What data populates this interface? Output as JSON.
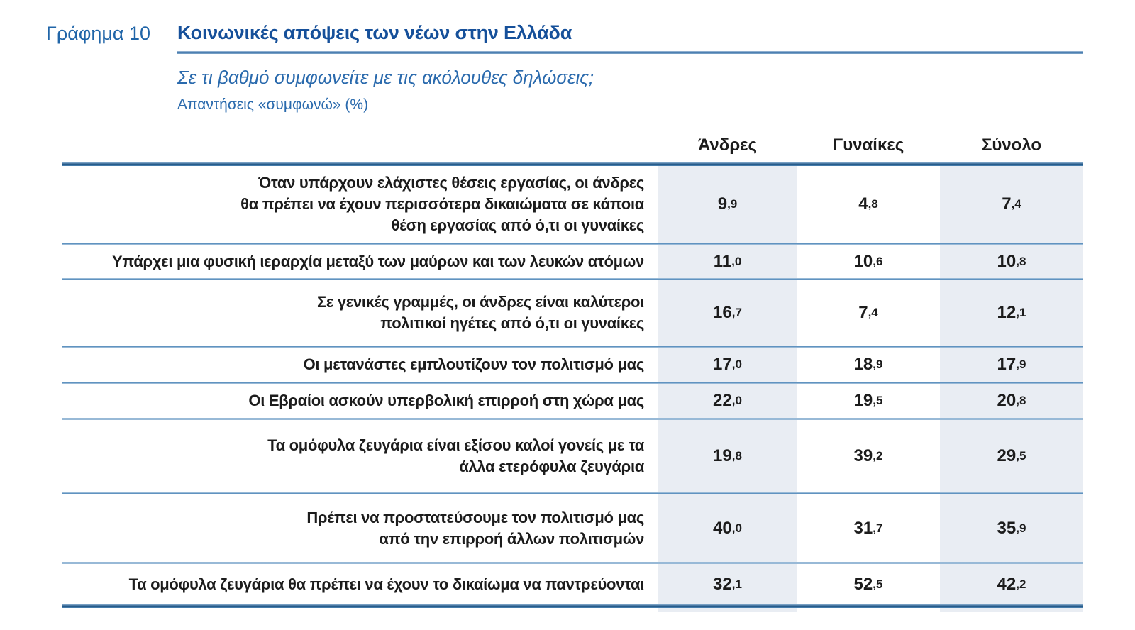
{
  "figure": {
    "label": "Γράφημα 10",
    "title": "Κοινωνικές απόψεις των νέων στην Ελλάδα",
    "subtitle": "Σε τι βαθμό συμφωνείτε με τις ακόλουθες δηλώσεις;",
    "note": "Απαντήσεις «συμφωνώ» (%)"
  },
  "colors": {
    "heading_blue": "#2065a8",
    "title_blue": "#16509a",
    "rule_dark_blue": "#1f5585",
    "separator_blue": "#4d86b8",
    "band_fill": "#e9edf3",
    "text_dark": "#1c1c1c"
  },
  "chart_data": {
    "type": "table",
    "title": "Κοινωνικές απόψεις των νέων στην Ελλάδα",
    "subtitle": "Σε τι βαθμό συμφωνείτε με τις ακόλουθες δηλώσεις;",
    "unit": "Απαντήσεις «συμφωνώ» (%)",
    "columns": [
      "Άνδρες",
      "Γυναίκες",
      "Σύνολο"
    ],
    "rows": [
      {
        "statement": "Όταν υπάρχουν ελάχιστες θέσεις εργασίας, οι άνδρες\nθα πρέπει να έχουν περισσότερα δικαιώματα σε κάποια\nθέση εργασίας από ό,τι οι γυναίκες",
        "display": [
          "9,9",
          "4,8",
          "7,4"
        ],
        "values": [
          9.9,
          4.8,
          7.4
        ]
      },
      {
        "statement": "Υπάρχει μια φυσική ιεραρχία μεταξύ των μαύρων και των λευκών ατόμων",
        "display": [
          "11,0",
          "10,6",
          "10,8"
        ],
        "values": [
          11.0,
          10.6,
          10.8
        ]
      },
      {
        "statement": "Σε γενικές γραμμές, οι άνδρες είναι καλύτεροι\nπολιτικοί ηγέτες από ό,τι οι γυναίκες",
        "display": [
          "16,7",
          "7,4",
          "12,1"
        ],
        "values": [
          16.7,
          7.4,
          12.1
        ]
      },
      {
        "statement": "Οι μετανάστες εμπλουτίζουν τον πολιτισμό μας",
        "display": [
          "17,0",
          "18,9",
          "17,9"
        ],
        "values": [
          17.0,
          18.9,
          17.9
        ]
      },
      {
        "statement": "Οι Εβραίοι ασκούν υπερβολική επιρροή στη χώρα μας",
        "display": [
          "22,0",
          "19,5",
          "20,8"
        ],
        "values": [
          22.0,
          19.5,
          20.8
        ]
      },
      {
        "statement": "Τα ομόφυλα ζευγάρια είναι εξίσου καλοί γονείς με τα\nάλλα ετερόφυλα ζευγάρια",
        "display": [
          "19,8",
          "39,2",
          "29,5"
        ],
        "values": [
          19.8,
          39.2,
          29.5
        ]
      },
      {
        "statement": "Πρέπει να προστατεύσουμε τον πολιτισμό μας\nαπό την επιρροή άλλων πολιτισμών",
        "display": [
          "40,0",
          "31,7",
          "35,9"
        ],
        "values": [
          40.0,
          31.7,
          35.9
        ]
      },
      {
        "statement": "Τα ομόφυλα ζευγάρια θα πρέπει να έχουν το δικαίωμα να παντρεύονται",
        "display": [
          "32,1",
          "52,5",
          "42,2"
        ],
        "values": [
          32.1,
          52.5,
          42.2
        ]
      }
    ]
  }
}
